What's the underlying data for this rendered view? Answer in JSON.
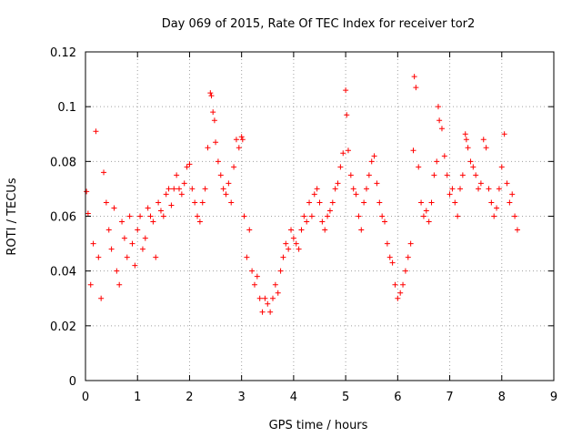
{
  "chart_data": {
    "type": "scatter",
    "title": "Day 069 of 2015, Rate Of TEC Index for receiver tor2",
    "xlabel": "GPS time / hours",
    "ylabel": "ROTI / TECUs",
    "xlim": [
      0,
      9
    ],
    "ylim": [
      0,
      0.12
    ],
    "xticks": [
      "0",
      "1",
      "2",
      "3",
      "4",
      "5",
      "6",
      "7",
      "8",
      "9"
    ],
    "yticks": [
      "0",
      "0.02",
      "0.04",
      "0.06",
      "0.08",
      "0.1",
      "0.12"
    ],
    "grid": true,
    "marker": "+",
    "color": "#ff0000",
    "series": [
      {
        "name": "ROTI",
        "x": [
          0.02,
          0.05,
          0.1,
          0.15,
          0.2,
          0.25,
          0.3,
          0.35,
          0.4,
          0.45,
          0.5,
          0.55,
          0.6,
          0.65,
          0.7,
          0.75,
          0.8,
          0.85,
          0.9,
          0.95,
          1.0,
          1.05,
          1.1,
          1.15,
          1.2,
          1.25,
          1.3,
          1.35,
          1.4,
          1.45,
          1.5,
          1.55,
          1.6,
          1.65,
          1.7,
          1.75,
          1.8,
          1.85,
          1.9,
          1.95,
          2.0,
          2.05,
          2.1,
          2.15,
          2.2,
          2.25,
          2.3,
          2.35,
          2.4,
          2.42,
          2.45,
          2.48,
          2.5,
          2.55,
          2.6,
          2.65,
          2.7,
          2.75,
          2.8,
          2.85,
          2.9,
          2.95,
          3.0,
          3.02,
          3.05,
          3.1,
          3.15,
          3.2,
          3.25,
          3.3,
          3.35,
          3.4,
          3.45,
          3.5,
          3.55,
          3.6,
          3.65,
          3.7,
          3.75,
          3.8,
          3.85,
          3.9,
          3.95,
          4.0,
          4.05,
          4.1,
          4.15,
          4.2,
          4.25,
          4.3,
          4.35,
          4.4,
          4.45,
          4.5,
          4.55,
          4.6,
          4.65,
          4.7,
          4.75,
          4.8,
          4.85,
          4.9,
          4.95,
          5.0,
          5.02,
          5.05,
          5.1,
          5.15,
          5.2,
          5.25,
          5.3,
          5.35,
          5.4,
          5.45,
          5.5,
          5.55,
          5.6,
          5.65,
          5.7,
          5.75,
          5.8,
          5.85,
          5.9,
          5.95,
          6.0,
          6.05,
          6.1,
          6.15,
          6.2,
          6.25,
          6.3,
          6.32,
          6.35,
          6.4,
          6.45,
          6.5,
          6.55,
          6.6,
          6.65,
          6.7,
          6.75,
          6.78,
          6.8,
          6.85,
          6.9,
          6.95,
          7.0,
          7.05,
          7.1,
          7.15,
          7.2,
          7.25,
          7.3,
          7.32,
          7.35,
          7.4,
          7.45,
          7.5,
          7.55,
          7.6,
          7.65,
          7.7,
          7.75,
          7.8,
          7.85,
          7.9,
          7.95,
          8.0,
          8.05,
          8.1,
          8.15,
          8.2,
          8.25,
          8.3
        ],
        "y": [
          0.069,
          0.061,
          0.035,
          0.05,
          0.091,
          0.045,
          0.03,
          0.076,
          0.065,
          0.055,
          0.048,
          0.063,
          0.04,
          0.035,
          0.058,
          0.052,
          0.045,
          0.06,
          0.05,
          0.042,
          0.055,
          0.06,
          0.048,
          0.052,
          0.063,
          0.06,
          0.058,
          0.045,
          0.065,
          0.062,
          0.06,
          0.068,
          0.07,
          0.064,
          0.07,
          0.075,
          0.07,
          0.068,
          0.072,
          0.078,
          0.079,
          0.07,
          0.065,
          0.06,
          0.058,
          0.065,
          0.07,
          0.085,
          0.105,
          0.104,
          0.098,
          0.095,
          0.087,
          0.08,
          0.075,
          0.07,
          0.068,
          0.072,
          0.065,
          0.078,
          0.088,
          0.085,
          0.089,
          0.088,
          0.06,
          0.045,
          0.055,
          0.04,
          0.035,
          0.038,
          0.03,
          0.025,
          0.03,
          0.028,
          0.025,
          0.03,
          0.035,
          0.032,
          0.04,
          0.045,
          0.05,
          0.048,
          0.055,
          0.052,
          0.05,
          0.048,
          0.055,
          0.06,
          0.058,
          0.065,
          0.06,
          0.068,
          0.07,
          0.065,
          0.058,
          0.055,
          0.06,
          0.062,
          0.065,
          0.07,
          0.072,
          0.078,
          0.083,
          0.106,
          0.097,
          0.084,
          0.075,
          0.07,
          0.068,
          0.06,
          0.055,
          0.065,
          0.07,
          0.075,
          0.08,
          0.082,
          0.072,
          0.065,
          0.06,
          0.058,
          0.05,
          0.045,
          0.043,
          0.035,
          0.03,
          0.032,
          0.035,
          0.04,
          0.045,
          0.05,
          0.084,
          0.111,
          0.107,
          0.078,
          0.065,
          0.06,
          0.062,
          0.058,
          0.065,
          0.075,
          0.08,
          0.1,
          0.095,
          0.092,
          0.082,
          0.075,
          0.068,
          0.07,
          0.065,
          0.06,
          0.07,
          0.075,
          0.09,
          0.088,
          0.085,
          0.08,
          0.078,
          0.075,
          0.07,
          0.072,
          0.088,
          0.085,
          0.07,
          0.065,
          0.06,
          0.063,
          0.07,
          0.078,
          0.09,
          0.072,
          0.065,
          0.068,
          0.06,
          0.055
        ]
      }
    ]
  }
}
